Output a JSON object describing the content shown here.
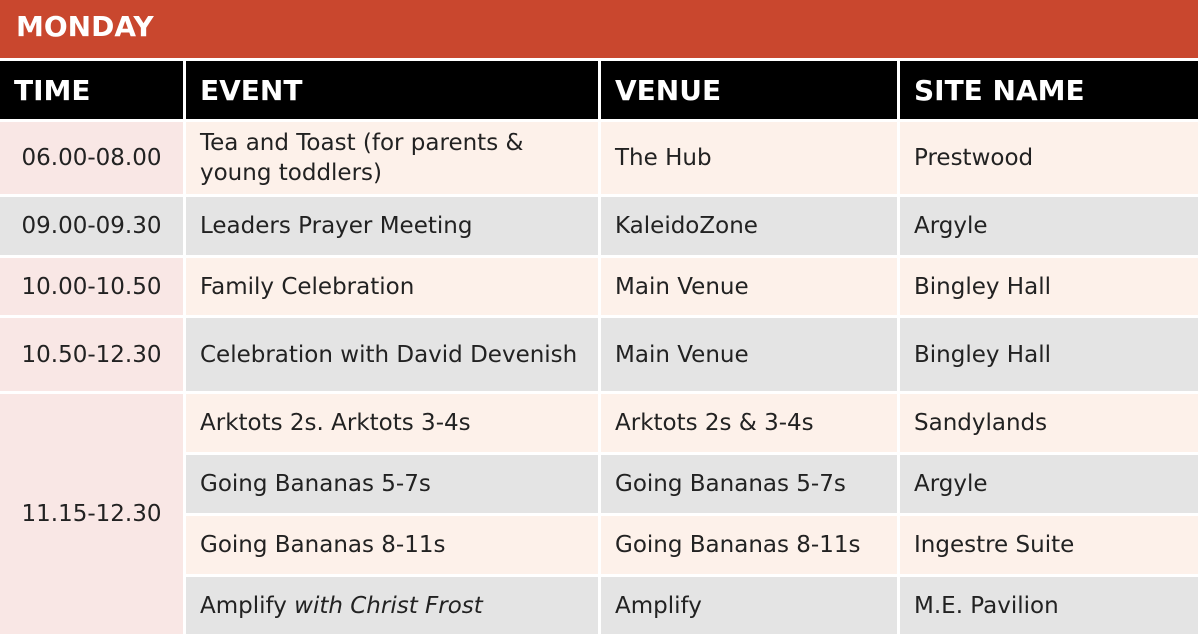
{
  "table": {
    "title": "MONDAY",
    "columns": [
      "TIME",
      "EVENT",
      "VENUE",
      "SITE NAME"
    ],
    "groups": [
      {
        "time": "06.00-08.00",
        "entries": [
          {
            "event": "Tea and Toast (for parents & young toddlers)",
            "venue": "The Hub",
            "site": "Prestwood"
          }
        ]
      },
      {
        "time": "09.00-09.30",
        "entries": [
          {
            "event": "Leaders Prayer Meeting",
            "venue": "KaleidoZone",
            "site": "Argyle"
          }
        ]
      },
      {
        "time": "10.00-10.50",
        "entries": [
          {
            "event": "Family Celebration",
            "venue": "Main Venue",
            "site": "Bingley Hall"
          }
        ]
      },
      {
        "time": "10.50-12.30",
        "entries": [
          {
            "event": "Celebration with David Devenish",
            "venue": "Main Venue",
            "site": "Bingley Hall"
          }
        ]
      },
      {
        "time": "11.15-12.30",
        "entries": [
          {
            "event": "Arktots 2s. Arktots 3-4s",
            "venue": "Arktots 2s & 3-4s",
            "site": "Sandylands"
          },
          {
            "event": "Going Bananas 5-7s",
            "venue": "Going Bananas 5-7s",
            "site": "Argyle"
          },
          {
            "event": "Going Bananas 8-11s",
            "venue": "Going Bananas 8-11s",
            "site": "Ingestre Suite"
          },
          {
            "event": "Amplify",
            "event_italic": "with Christ Frost",
            "venue": "Amplify",
            "site": "M.E. Pavilion"
          }
        ]
      }
    ]
  }
}
